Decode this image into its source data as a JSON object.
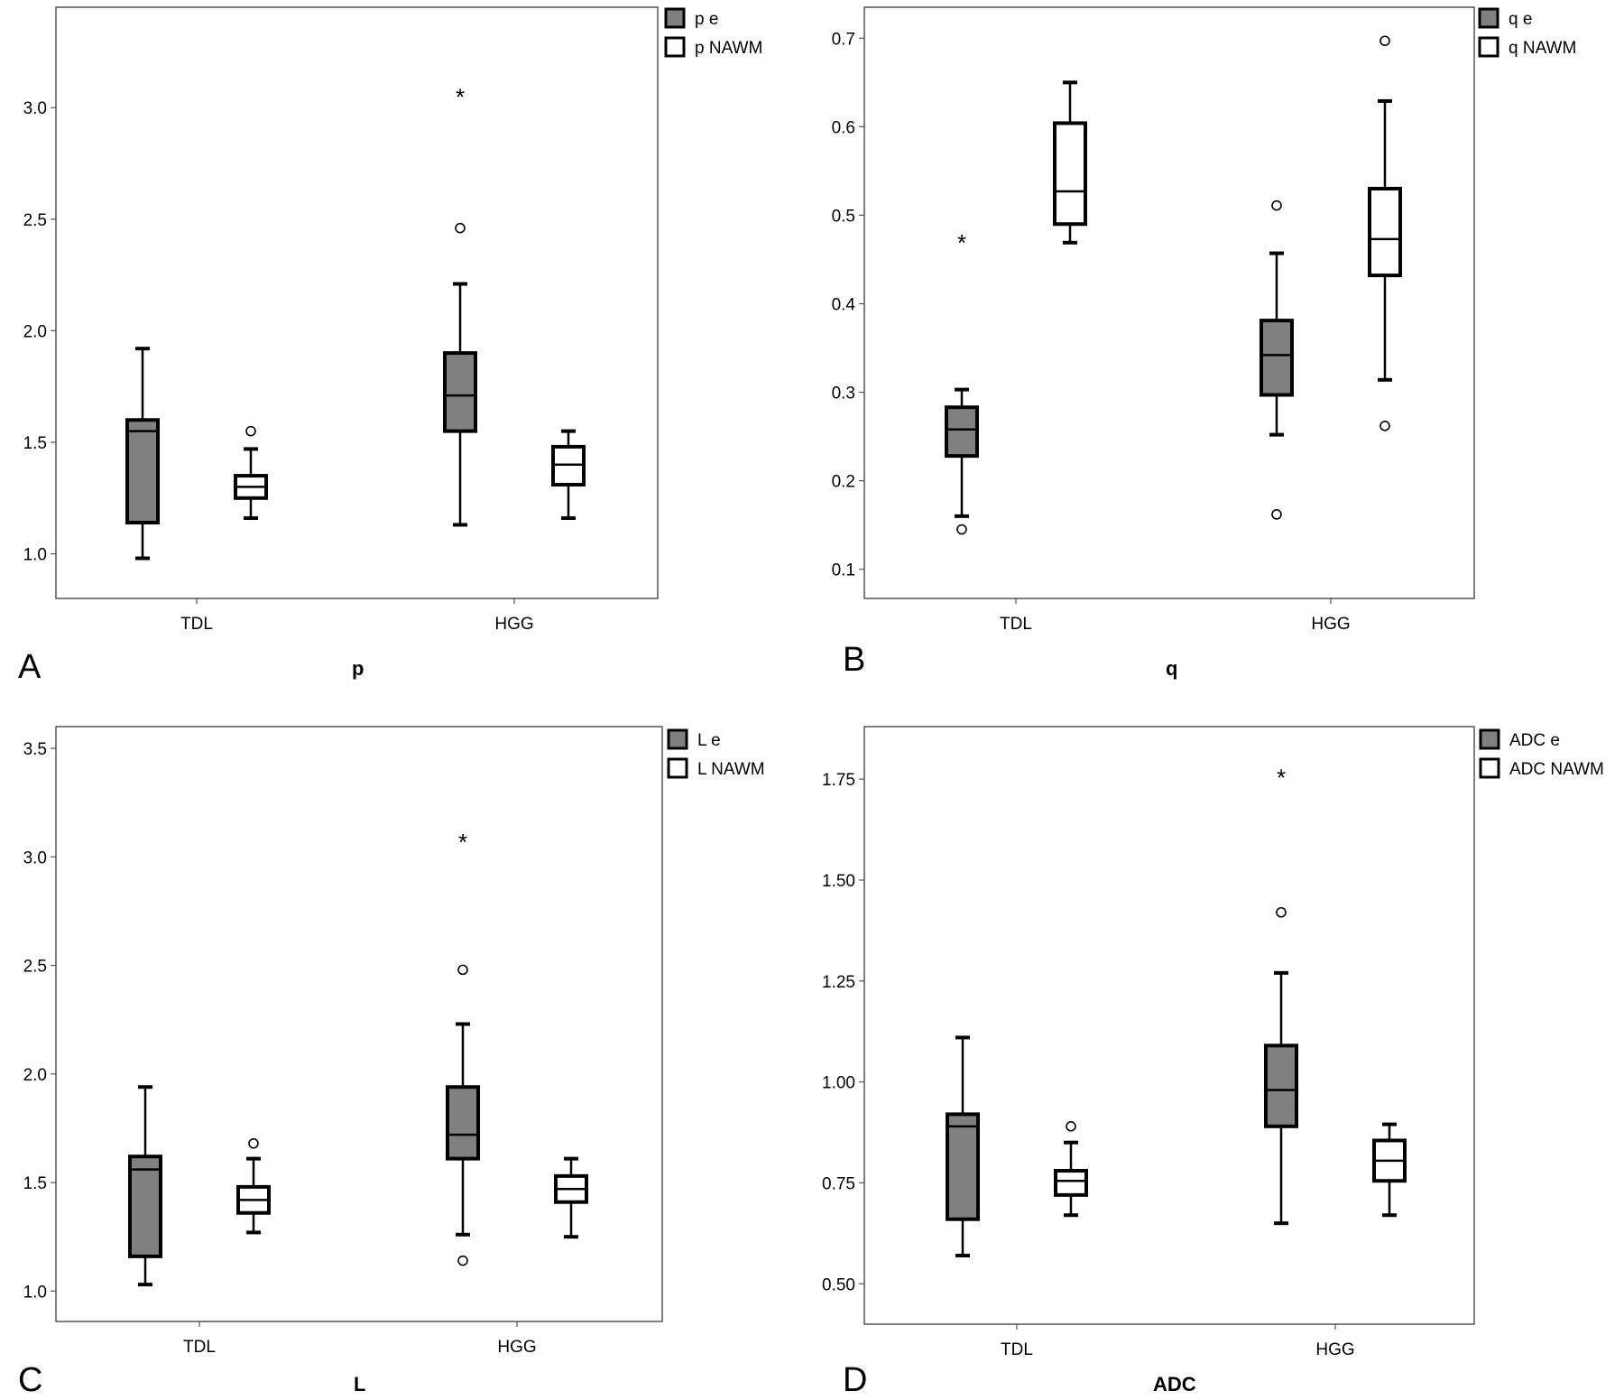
{
  "colors": {
    "filled_box": "#808080",
    "open_box": "#ffffff",
    "stroke": "#000000",
    "frame": "#555555"
  },
  "chart_data": [
    {
      "type": "boxplot",
      "panel_label": "A",
      "xlabel": "p",
      "categories": [
        "TDL",
        "HGG"
      ],
      "ylim": [
        0.8,
        3.45
      ],
      "yticks": [
        1.0,
        1.5,
        2.0,
        2.5,
        3.0
      ],
      "ytick_labels": [
        "1.0",
        "1.5",
        "2.0",
        "2.5",
        "3.0"
      ],
      "legend_position": "top-right",
      "series": [
        {
          "name": "p e",
          "fill": "gray",
          "boxes": [
            {
              "category": "TDL",
              "whisker_low": 0.98,
              "q1": 1.14,
              "median": 1.55,
              "q3": 1.6,
              "whisker_high": 1.92,
              "outliers": [],
              "extremes": []
            },
            {
              "category": "HGG",
              "whisker_low": 1.13,
              "q1": 1.55,
              "median": 1.71,
              "q3": 1.9,
              "whisker_high": 2.21,
              "outliers": [
                2.46
              ],
              "extremes": [
                3.06
              ]
            }
          ]
        },
        {
          "name": "p NAWM",
          "fill": "white",
          "boxes": [
            {
              "category": "TDL",
              "whisker_low": 1.16,
              "q1": 1.25,
              "median": 1.3,
              "q3": 1.35,
              "whisker_high": 1.47,
              "outliers": [
                1.55
              ],
              "extremes": []
            },
            {
              "category": "HGG",
              "whisker_low": 1.16,
              "q1": 1.31,
              "median": 1.4,
              "q3": 1.48,
              "whisker_high": 1.55,
              "outliers": [],
              "extremes": []
            }
          ]
        }
      ]
    },
    {
      "type": "boxplot",
      "panel_label": "B",
      "xlabel": "q",
      "categories": [
        "TDL",
        "HGG"
      ],
      "ylim": [
        0.067,
        0.735
      ],
      "yticks": [
        0.1,
        0.2,
        0.3,
        0.4,
        0.5,
        0.6,
        0.7
      ],
      "ytick_labels": [
        "0.1",
        "0.2",
        "0.3",
        "0.4",
        "0.5",
        "0.6",
        "0.7"
      ],
      "legend_position": "top-right",
      "series": [
        {
          "name": "q e",
          "fill": "gray",
          "boxes": [
            {
              "category": "TDL",
              "whisker_low": 0.16,
              "q1": 0.228,
              "median": 0.258,
              "q3": 0.283,
              "whisker_high": 0.303,
              "outliers": [
                0.145
              ],
              "extremes": [
                0.472
              ]
            },
            {
              "category": "HGG",
              "whisker_low": 0.252,
              "q1": 0.297,
              "median": 0.342,
              "q3": 0.381,
              "whisker_high": 0.457,
              "outliers": [
                0.162,
                0.511
              ],
              "extremes": []
            }
          ]
        },
        {
          "name": "q NAWM",
          "fill": "white",
          "boxes": [
            {
              "category": "TDL",
              "whisker_low": 0.469,
              "q1": 0.49,
              "median": 0.527,
              "q3": 0.604,
              "whisker_high": 0.65,
              "outliers": [],
              "extremes": []
            },
            {
              "category": "HGG",
              "whisker_low": 0.314,
              "q1": 0.432,
              "median": 0.473,
              "q3": 0.53,
              "whisker_high": 0.629,
              "outliers": [
                0.262,
                0.697
              ],
              "extremes": []
            }
          ]
        }
      ]
    },
    {
      "type": "boxplot",
      "panel_label": "C",
      "xlabel": "L",
      "categories": [
        "TDL",
        "HGG"
      ],
      "ylim": [
        0.86,
        3.6
      ],
      "yticks": [
        1.0,
        1.5,
        2.0,
        2.5,
        3.0,
        3.5
      ],
      "ytick_labels": [
        "1.0",
        "1.5",
        "2.0",
        "2.5",
        "3.0",
        "3.5"
      ],
      "legend_position": "top-right",
      "series": [
        {
          "name": "L e",
          "fill": "gray",
          "boxes": [
            {
              "category": "TDL",
              "whisker_low": 1.03,
              "q1": 1.16,
              "median": 1.56,
              "q3": 1.62,
              "whisker_high": 1.94,
              "outliers": [],
              "extremes": []
            },
            {
              "category": "HGG",
              "whisker_low": 1.26,
              "q1": 1.61,
              "median": 1.72,
              "q3": 1.94,
              "whisker_high": 2.23,
              "outliers": [
                1.14,
                2.48
              ],
              "extremes": [
                3.08
              ]
            }
          ]
        },
        {
          "name": "L NAWM",
          "fill": "white",
          "boxes": [
            {
              "category": "TDL",
              "whisker_low": 1.27,
              "q1": 1.36,
              "median": 1.42,
              "q3": 1.48,
              "whisker_high": 1.61,
              "outliers": [
                1.68
              ],
              "extremes": []
            },
            {
              "category": "HGG",
              "whisker_low": 1.25,
              "q1": 1.41,
              "median": 1.47,
              "q3": 1.53,
              "whisker_high": 1.61,
              "outliers": [],
              "extremes": []
            }
          ]
        }
      ]
    },
    {
      "type": "boxplot",
      "panel_label": "D",
      "xlabel": "ADC",
      "categories": [
        "TDL",
        "HGG"
      ],
      "ylim": [
        0.4,
        1.88
      ],
      "yticks": [
        0.5,
        0.75,
        1.0,
        1.25,
        1.5,
        1.75
      ],
      "ytick_labels": [
        "0.50",
        "0.75",
        "1.00",
        "1.25",
        "1.50",
        "1.75"
      ],
      "legend_position": "top-right",
      "series": [
        {
          "name": "ADC e",
          "fill": "gray",
          "boxes": [
            {
              "category": "TDL",
              "whisker_low": 0.57,
              "q1": 0.66,
              "median": 0.89,
              "q3": 0.92,
              "whisker_high": 1.11,
              "outliers": [],
              "extremes": []
            },
            {
              "category": "HGG",
              "whisker_low": 0.65,
              "q1": 0.89,
              "median": 0.98,
              "q3": 1.09,
              "whisker_high": 1.27,
              "outliers": [
                1.42
              ],
              "extremes": [
                1.76
              ]
            }
          ]
        },
        {
          "name": "ADC NAWM",
          "fill": "white",
          "boxes": [
            {
              "category": "TDL",
              "whisker_low": 0.67,
              "q1": 0.72,
              "median": 0.755,
              "q3": 0.78,
              "whisker_high": 0.85,
              "outliers": [
                0.89
              ],
              "extremes": []
            },
            {
              "category": "HGG",
              "whisker_low": 0.67,
              "q1": 0.755,
              "median": 0.805,
              "q3": 0.855,
              "whisker_high": 0.895,
              "outliers": [],
              "extremes": []
            }
          ]
        }
      ]
    }
  ]
}
